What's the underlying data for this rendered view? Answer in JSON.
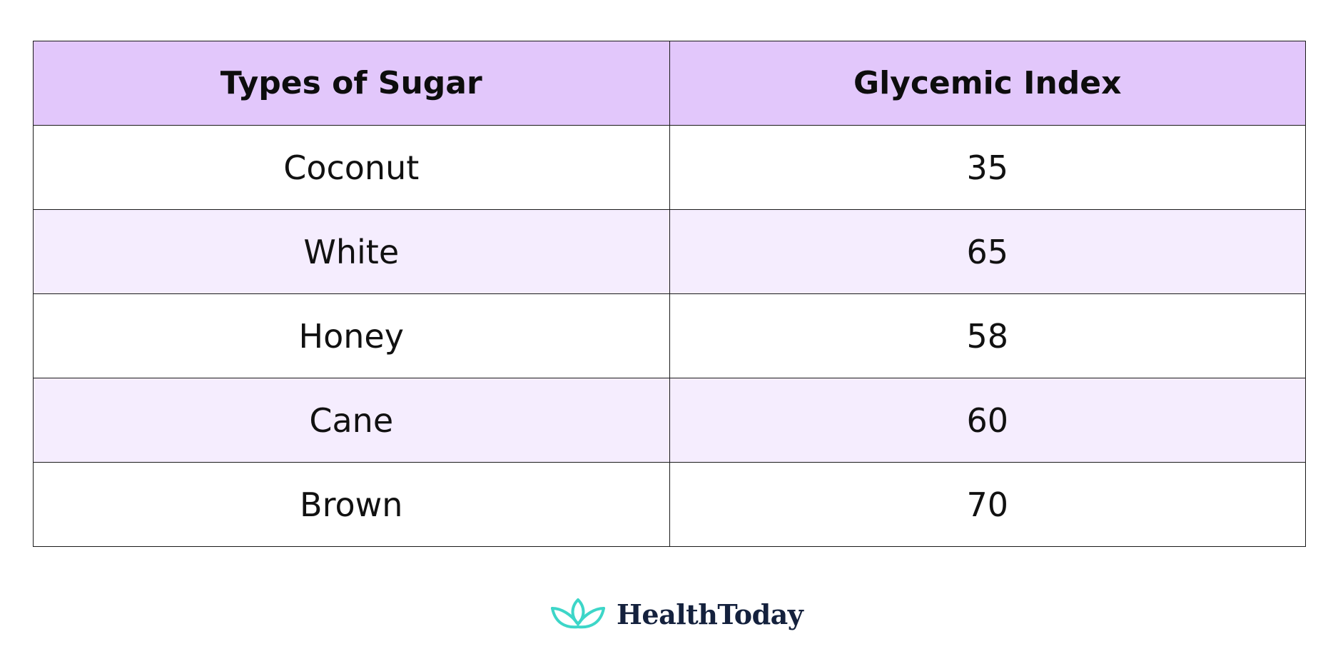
{
  "chart_data": {
    "type": "table",
    "columns": [
      "Types of Sugar",
      "Glycemic Index"
    ],
    "rows": [
      [
        "Coconut",
        "35"
      ],
      [
        "White",
        "65"
      ],
      [
        "Honey",
        "58"
      ],
      [
        "Cane",
        "60"
      ],
      [
        "Brown",
        "70"
      ]
    ]
  },
  "brand": {
    "name": "HealthToday",
    "icon": "lotus-logo-icon",
    "icon_color": "#3dd6c8",
    "text_color": "#14213d"
  },
  "colors": {
    "header_bg": "#e2c7fb",
    "alt_row_bg": "#f5edfe"
  }
}
